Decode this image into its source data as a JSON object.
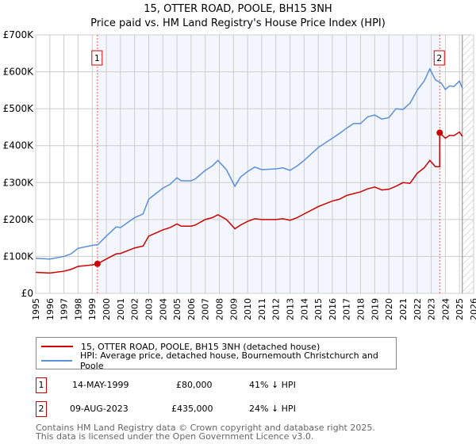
{
  "chart_data": {
    "type": "line",
    "title": "15, OTTER ROAD, POOLE, BH15 3NH",
    "subtitle": "Price paid vs. HM Land Registry's House Price Index (HPI)",
    "xlim": [
      1995,
      2026
    ],
    "ylim": [
      0,
      700000
    ],
    "x_ticks": [
      "1995",
      "1996",
      "1997",
      "1998",
      "1999",
      "2000",
      "2001",
      "2002",
      "2003",
      "2004",
      "2005",
      "2006",
      "2007",
      "2008",
      "2009",
      "2010",
      "2011",
      "2012",
      "2013",
      "2014",
      "2015",
      "2016",
      "2017",
      "2018",
      "2019",
      "2020",
      "2021",
      "2022",
      "2023",
      "2024",
      "2025",
      "2026"
    ],
    "y_ticks": [
      {
        "v": 0,
        "label": "£0"
      },
      {
        "v": 100000,
        "label": "£100K"
      },
      {
        "v": 200000,
        "label": "£200K"
      },
      {
        "v": 300000,
        "label": "£300K"
      },
      {
        "v": 400000,
        "label": "£400K"
      },
      {
        "v": 500000,
        "label": "£500K"
      },
      {
        "v": 600000,
        "label": "£600K"
      },
      {
        "v": 700000,
        "label": "£700K"
      }
    ],
    "grid": true,
    "shaded_range": [
      1999.37,
      2023.6
    ],
    "forecast_hatch_from": 2025.2,
    "series": [
      {
        "name": "15, OTTER ROAD, POOLE, BH15 3NH (detached house)",
        "color": "#cc0000",
        "x": [
          1995,
          1996,
          1997,
          1997.5,
          1998,
          1999,
          1999.37,
          2000,
          2000.7,
          2001,
          2002,
          2002.6,
          2003,
          2004,
          2004.5,
          2005,
          2005.3,
          2006,
          2006.3,
          2007,
          2007.5,
          2007.9,
          2008.5,
          2009.1,
          2009.5,
          2010,
          2010.5,
          2011,
          2012,
          2012.5,
          2013,
          2013.5,
          2014,
          2015,
          2016,
          2016.5,
          2017,
          2017.5,
          2018,
          2018.5,
          2019,
          2019.5,
          2020,
          2020.5,
          2021,
          2021.5,
          2022,
          2022.5,
          2022.9,
          2023.3,
          2023.6,
          2023.6,
          2024,
          2024.3,
          2024.6,
          2025,
          2025.2
        ],
        "y": [
          57000,
          55000,
          60000,
          65000,
          73000,
          77000,
          80000,
          93000,
          107000,
          108000,
          123000,
          128000,
          155000,
          172000,
          178000,
          188000,
          182000,
          182000,
          185000,
          200000,
          205000,
          213000,
          200000,
          175000,
          185000,
          195000,
          202000,
          200000,
          200000,
          202000,
          198000,
          205000,
          215000,
          235000,
          250000,
          255000,
          265000,
          270000,
          275000,
          283000,
          288000,
          280000,
          282000,
          290000,
          300000,
          298000,
          325000,
          340000,
          360000,
          343000,
          343000,
          435000,
          420000,
          428000,
          427000,
          437000,
          425000
        ]
      },
      {
        "name": "HPI: Average price, detached house, Bournemouth Christchurch and Poole",
        "color": "#5b8fd6",
        "x": [
          1995,
          1996,
          1997,
          1997.5,
          1998,
          1999,
          1999.4,
          2000,
          2000.7,
          2001,
          2002,
          2002.6,
          2003,
          2004,
          2004.5,
          2005,
          2005.3,
          2006,
          2006.3,
          2007,
          2007.5,
          2007.9,
          2008.5,
          2009.1,
          2009.5,
          2010,
          2010.5,
          2011,
          2012,
          2012.5,
          2013,
          2013.5,
          2014,
          2015,
          2016,
          2016.5,
          2017,
          2017.5,
          2018,
          2018.5,
          2019,
          2019.5,
          2020,
          2020.5,
          2021,
          2021.5,
          2022,
          2022.5,
          2022.9,
          2023.3,
          2023.7,
          2024,
          2024.3,
          2024.6,
          2025,
          2025.2
        ],
        "y": [
          95000,
          93000,
          100000,
          107000,
          122000,
          130000,
          132000,
          155000,
          180000,
          178000,
          205000,
          215000,
          255000,
          285000,
          295000,
          313000,
          305000,
          305000,
          310000,
          333000,
          345000,
          360000,
          335000,
          290000,
          315000,
          330000,
          342000,
          335000,
          337000,
          340000,
          333000,
          345000,
          360000,
          395000,
          420000,
          433000,
          447000,
          460000,
          460000,
          478000,
          483000,
          472000,
          476000,
          500000,
          498000,
          515000,
          550000,
          575000,
          608000,
          578000,
          570000,
          552000,
          562000,
          560000,
          575000,
          556000
        ]
      }
    ],
    "annotations": [
      {
        "label": "1",
        "x": 1999.37,
        "y": 80000
      },
      {
        "label": "2",
        "x": 2023.6,
        "y": 435000
      }
    ]
  },
  "transactions": [
    {
      "num": "1",
      "date": "14-MAY-1999",
      "price": "£80,000",
      "hpi": "41% ↓ HPI"
    },
    {
      "num": "2",
      "date": "09-AUG-2023",
      "price": "£435,000",
      "hpi": "24% ↓ HPI"
    }
  ],
  "footer": {
    "line1": "Contains HM Land Registry data © Crown copyright and database right 2025.",
    "line2": "This data is licensed under the Open Government Licence v3.0."
  }
}
